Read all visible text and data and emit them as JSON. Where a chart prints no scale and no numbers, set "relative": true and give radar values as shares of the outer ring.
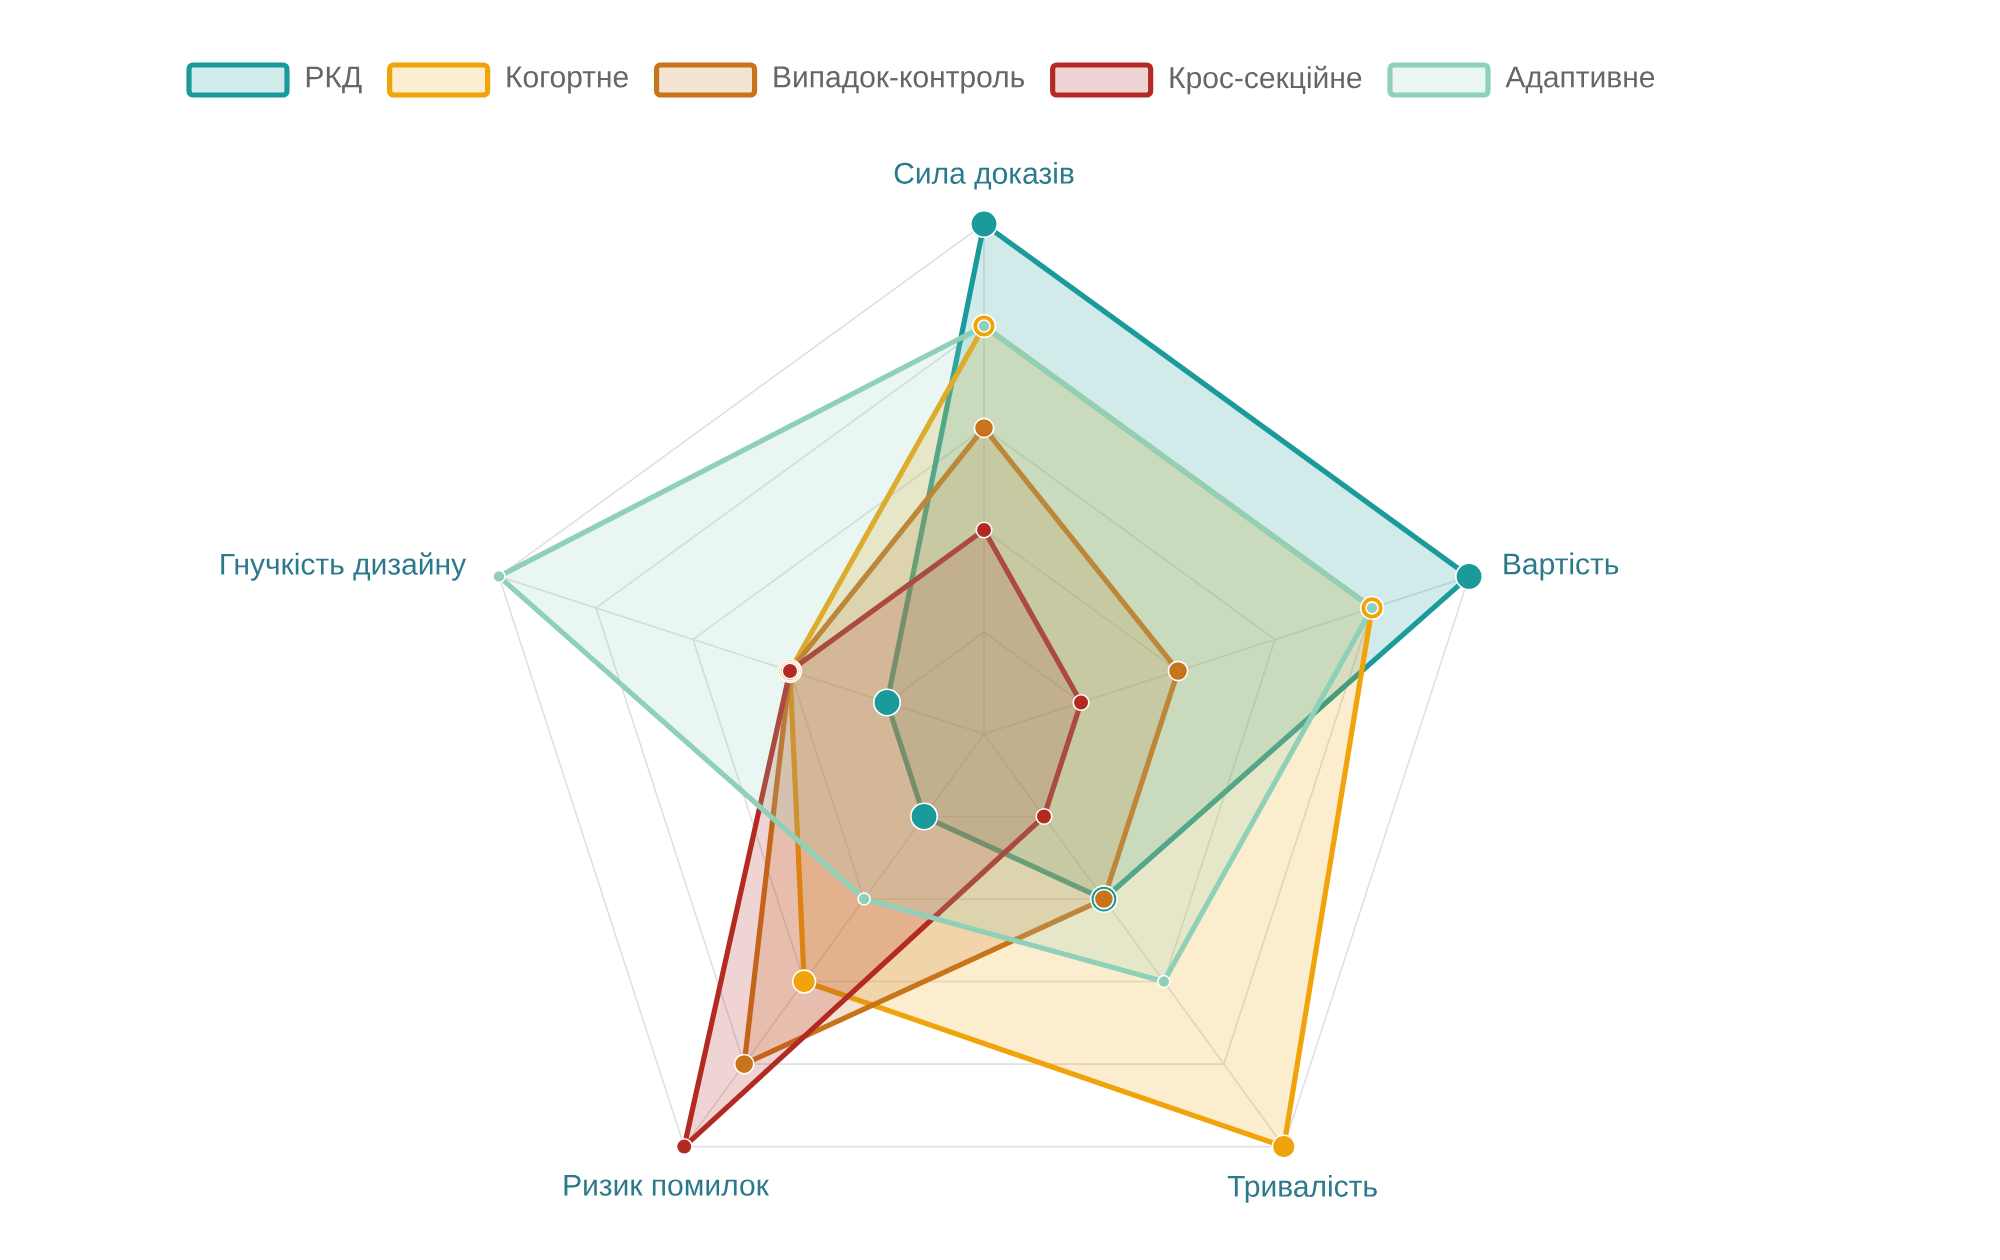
{
  "chart_data": {
    "type": "radar",
    "relative": true,
    "grid": true,
    "legend": "top",
    "marker": "circle",
    "categories": [
      "Сила доказів",
      "Вартість",
      "Тривалість",
      "Ризик помилок",
      "Гнучкість дизайну"
    ],
    "series": [
      {
        "name": "РКД",
        "color": "#1a9a9a",
        "values": [
          1.0,
          1.0,
          0.4,
          0.2,
          0.2
        ]
      },
      {
        "name": "Когортне",
        "color": "#f0a30a",
        "values": [
          0.8,
          0.8,
          1.0,
          0.6,
          0.4
        ]
      },
      {
        "name": "Випадок-контроль",
        "color": "#c8741a",
        "values": [
          0.6,
          0.4,
          0.4,
          0.8,
          0.4
        ]
      },
      {
        "name": "Крос-секційне",
        "color": "#b22a22",
        "values": [
          0.4,
          0.2,
          0.2,
          1.0,
          0.4
        ]
      },
      {
        "name": "Адаптивне",
        "color": "#8fd0b8",
        "values": [
          0.8,
          0.8,
          0.6,
          0.4,
          1.0
        ]
      }
    ]
  }
}
